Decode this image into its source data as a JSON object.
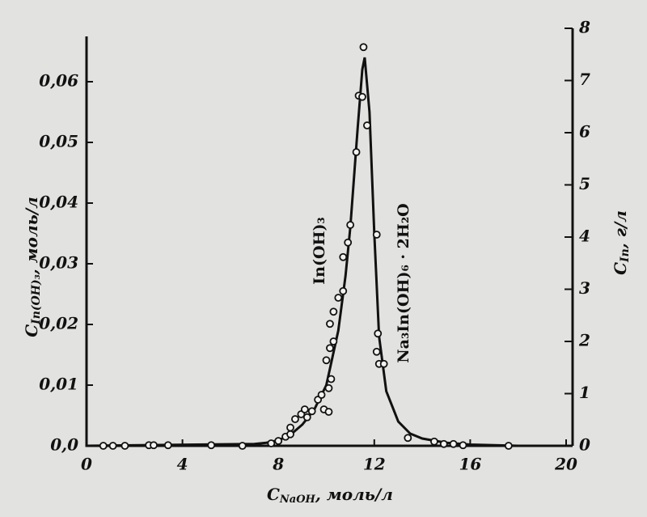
{
  "chart_data": {
    "type": "scatter",
    "xlabel": "C",
    "xlabel_sub": "NaOH",
    "xlabel_unit": ", моль/л",
    "ylabel": "C",
    "ylabel_sub": "In(OH)₃",
    "ylabel_unit": ", моль/л",
    "y2label": "C",
    "y2label_sub": "In",
    "y2label_unit": ", г/л",
    "annotations": [
      "In(OH)₃",
      "Na₃In(OH)₆ · 2H₂O"
    ],
    "xlim": [
      0,
      20
    ],
    "xticks": [
      0,
      4,
      8,
      12,
      16,
      20
    ],
    "ylim": [
      0,
      0.0688
    ],
    "yticks": [
      {
        "value": 0,
        "label": "0,0"
      },
      {
        "value": 0.01,
        "label": "0,01"
      },
      {
        "value": 0.02,
        "label": "0,02"
      },
      {
        "value": 0.03,
        "label": "0,03"
      },
      {
        "value": 0.04,
        "label": "0,04"
      },
      {
        "value": 0.05,
        "label": "0,05"
      },
      {
        "value": 0.06,
        "label": "0,06"
      }
    ],
    "y2lim": [
      0,
      8
    ],
    "y2ticks": [
      0,
      1,
      2,
      3,
      4,
      5,
      6,
      7,
      8
    ],
    "series": [
      {
        "type": "line",
        "color": "#111111",
        "x": [
          0,
          7,
          7.5,
          8,
          8.5,
          9,
          9.5,
          10,
          10.5,
          10.8,
          11,
          11.3,
          11.5,
          11.6,
          11.8,
          12,
          12.2,
          12.5,
          13,
          13.5,
          14,
          15,
          16,
          18,
          20
        ],
        "values": [
          0,
          0.0003,
          0.0005,
          0.0009,
          0.0018,
          0.0035,
          0.006,
          0.01,
          0.019,
          0.028,
          0.036,
          0.052,
          0.062,
          0.064,
          0.055,
          0.035,
          0.018,
          0.009,
          0.004,
          0.002,
          0.0012,
          0.0005,
          0.0002,
          0,
          0
        ]
      },
      {
        "type": "scatter",
        "color": "#111111",
        "x": [
          0.7,
          1.1,
          1.6,
          2.6,
          2.8,
          3.4,
          5.2,
          6.5,
          7.7,
          8.0,
          8.3,
          8.5,
          8.5,
          8.7,
          8.95,
          9.1,
          9.2,
          9.4,
          9.65,
          9.8,
          9.9,
          10.1,
          10.1,
          10.2,
          10.0,
          10.15,
          10.3,
          10.15,
          10.3,
          10.5,
          10.7,
          10.7,
          10.9,
          11.0,
          11.25,
          11.35,
          11.55,
          11.5,
          11.7,
          12.1,
          12.15,
          12.1,
          12.2,
          12.4,
          13.4,
          14.5,
          14.9,
          15.3,
          15.7,
          17.6
        ],
        "values": [
          0,
          0,
          0,
          0.0001,
          0.0001,
          0.0001,
          0.0001,
          0,
          0.0004,
          0.0008,
          0.0015,
          0.0019,
          0.003,
          0.0044,
          0.0052,
          0.006,
          0.0047,
          0.0057,
          0.0076,
          0.0084,
          0.006,
          0.0056,
          0.0095,
          0.011,
          0.0141,
          0.0161,
          0.0172,
          0.0201,
          0.0221,
          0.0244,
          0.0255,
          0.0311,
          0.0335,
          0.0364,
          0.0484,
          0.0577,
          0.0657,
          0.0575,
          0.0528,
          0.0348,
          0.0185,
          0.0155,
          0.0135,
          0.0135,
          0.0013,
          0.0007,
          0.0003,
          0.0003,
          0.0001,
          0
        ]
      }
    ]
  }
}
